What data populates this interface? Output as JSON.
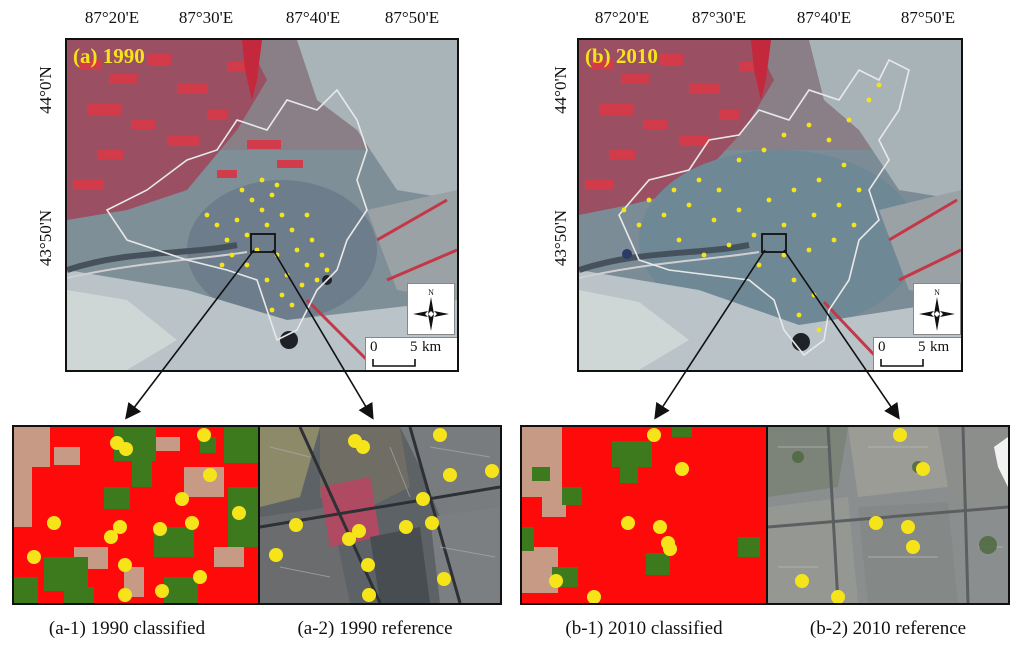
{
  "coords": {
    "longitudes": [
      "87°20'E",
      "87°30'E",
      "87°40'E",
      "87°50'E"
    ],
    "latitudes": [
      "44°0'N",
      "43°50'N"
    ]
  },
  "panels": [
    {
      "title": "(a) 1990"
    },
    {
      "title": "(b) 2010"
    }
  ],
  "north_arrow_letter": "N",
  "scale_bar": {
    "zero": "0",
    "distance": "5",
    "unit": "km"
  },
  "insets": [
    {
      "caption": "(a-1) 1990 classified"
    },
    {
      "caption": "(a-2) 1990 reference"
    },
    {
      "caption": "(b-1) 2010 classified"
    },
    {
      "caption": "(b-2) 2010 reference"
    }
  ],
  "colors": {
    "vegetation_red": "#d23c4a",
    "built_up_red": "#ff0a0a",
    "green_class": "#3d7a1e",
    "tan_class": "#c79a86",
    "sample_points": "#f5e41a",
    "urban_boundary": "#e8e8e8"
  }
}
